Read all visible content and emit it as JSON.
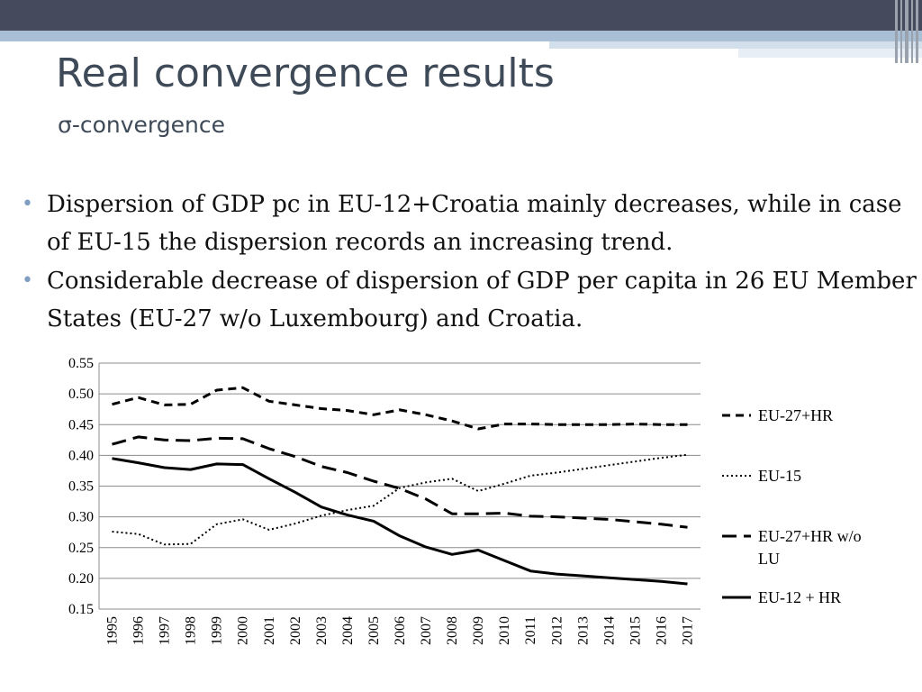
{
  "slide": {
    "title": "Real convergence results",
    "subtitle": "σ-convergence",
    "bullets": [
      "Dispersion of GDP pc in EU-12+Croatia mainly decreases, while in case of EU-15 the dispersion records an increasing trend.",
      "Considerable decrease of dispersion of GDP per capita in 26 EU Member States (EU-27 w/o Luxembourg) and Croatia."
    ],
    "bullet_glyph": "•"
  },
  "chart_data": {
    "type": "line",
    "title": "",
    "xlabel": "",
    "ylabel": "",
    "x": [
      "1995",
      "1996",
      "1997",
      "1998",
      "1999",
      "2000",
      "2001",
      "2002",
      "2003",
      "2004",
      "2005",
      "2006",
      "2007",
      "2008",
      "2009",
      "2010",
      "2011",
      "2012",
      "2013",
      "2014",
      "2015",
      "2016",
      "2017"
    ],
    "ylim": [
      0.15,
      0.55
    ],
    "yticks": [
      "0.15",
      "0.20",
      "0.25",
      "0.30",
      "0.35",
      "0.40",
      "0.45",
      "0.50",
      "0.55"
    ],
    "grid": true,
    "legend_position": "right",
    "series": [
      {
        "name": "EU-27+HR",
        "style": "short-dash",
        "color": "#000000",
        "values": [
          0.483,
          0.494,
          0.482,
          0.483,
          0.506,
          0.51,
          0.488,
          0.482,
          0.476,
          0.473,
          0.466,
          0.474,
          0.466,
          0.456,
          0.443,
          0.451,
          0.451,
          0.45,
          0.45,
          0.45,
          0.451,
          0.45,
          0.45
        ]
      },
      {
        "name": "EU-15",
        "style": "dotted",
        "color": "#000000",
        "values": [
          0.276,
          0.272,
          0.255,
          0.256,
          0.288,
          0.296,
          0.279,
          0.289,
          0.302,
          0.311,
          0.318,
          0.347,
          0.356,
          0.362,
          0.342,
          0.354,
          0.367,
          0.372,
          0.378,
          0.384,
          0.39,
          0.396,
          0.401
        ]
      },
      {
        "name": "EU-27+HR w/o LU",
        "style": "long-dash",
        "color": "#000000",
        "values": [
          0.418,
          0.43,
          0.425,
          0.424,
          0.428,
          0.427,
          0.411,
          0.398,
          0.382,
          0.372,
          0.358,
          0.346,
          0.329,
          0.305,
          0.305,
          0.306,
          0.301,
          0.3,
          0.298,
          0.296,
          0.292,
          0.288,
          0.283
        ]
      },
      {
        "name": "EU-12 + HR",
        "style": "solid",
        "color": "#000000",
        "values": [
          0.395,
          0.388,
          0.38,
          0.377,
          0.386,
          0.385,
          0.362,
          0.34,
          0.316,
          0.303,
          0.293,
          0.269,
          0.251,
          0.239,
          0.246,
          0.229,
          0.212,
          0.207,
          0.204,
          0.201,
          0.198,
          0.195,
          0.191
        ]
      }
    ]
  }
}
